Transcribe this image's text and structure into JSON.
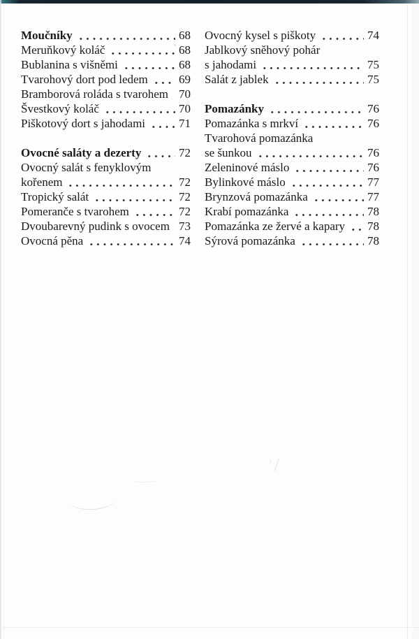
{
  "colors": {
    "paper": "#fdfdfc",
    "ink": "#1a1a1a",
    "edge_bar_dark": "#131f29",
    "edge_bar_teal": "#3b7f8e"
  },
  "toc": {
    "columns": [
      {
        "sections": [
          {
            "title": "Moučníky",
            "page": "68",
            "items": [
              {
                "text": "Meruňkový koláč",
                "page": "68"
              },
              {
                "text": "Bublanina s višněmi",
                "page": "68"
              },
              {
                "text": "Tvarohový dort pod ledem",
                "page": "69"
              },
              {
                "text": "Bramborová roláda s tvarohem",
                "page": "70",
                "dots": false
              },
              {
                "text": "Švestkový koláč",
                "page": "70"
              },
              {
                "text": "Piškotový dort s jahodami",
                "page": "71"
              }
            ]
          },
          {
            "title": "Ovocné saláty a dezerty",
            "page": "72",
            "items": [
              {
                "text": "Ovocný salát s fenyklovým",
                "page": ""
              },
              {
                "text": "kořenem",
                "page": "72"
              },
              {
                "text": "Tropický salát",
                "page": "72"
              },
              {
                "text": "Pomeranče s tvarohem",
                "page": "72"
              },
              {
                "text": "Dvoubarevný pudink s ovocem",
                "page": "73",
                "dots": false
              },
              {
                "text": "Ovocná pěna",
                "page": "74"
              }
            ]
          }
        ]
      },
      {
        "sections": [
          {
            "title": "",
            "page": "",
            "items": [
              {
                "text": "Ovocný kysel s piškoty",
                "page": "74"
              },
              {
                "text": "Jablkový sněhový pohár",
                "page": ""
              },
              {
                "text": "s jahodami",
                "page": "75"
              },
              {
                "text": "Salát z jablek",
                "page": "75"
              }
            ]
          },
          {
            "title": "Pomazánky",
            "page": "76",
            "items": [
              {
                "text": "Pomazánka s mrkví",
                "page": "76"
              },
              {
                "text": "Tvarohová pomazánka",
                "page": ""
              },
              {
                "text": "se šunkou",
                "page": "76"
              },
              {
                "text": "Zeleninové máslo",
                "page": "76"
              },
              {
                "text": "Bylinkové máslo",
                "page": "77"
              },
              {
                "text": "Brynzová pomazánka",
                "page": "77"
              },
              {
                "text": "Krabí pomazánka",
                "page": "78"
              },
              {
                "text": "Pomazánka ze žervé a kapary",
                "page": "78"
              },
              {
                "text": "Sýrová pomazánka",
                "page": "78"
              }
            ]
          }
        ]
      }
    ]
  }
}
